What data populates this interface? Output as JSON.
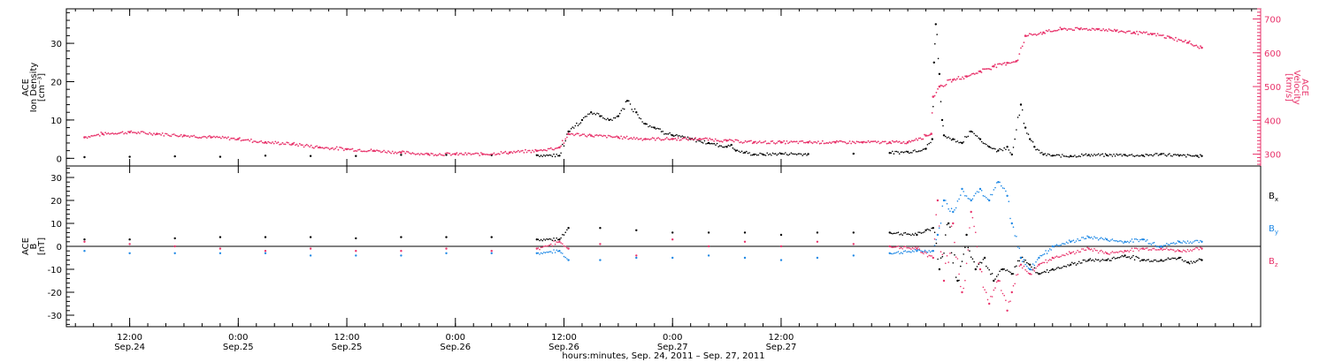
{
  "colors": {
    "black": "#000000",
    "pink": "#e8336b",
    "blue": "#1e88e5"
  },
  "chart_data": [
    {
      "type": "scatter",
      "panel": "top",
      "left_axis": {
        "label_lines": [
          "ACE",
          "Ion Density",
          "[cm⁻³]"
        ],
        "ylim": [
          -2,
          39
        ],
        "ticks": [
          0,
          10,
          20,
          30
        ]
      },
      "right_axis": {
        "label_lines": [
          "ACE",
          "Velocity",
          "[km/s]"
        ],
        "ylim": [
          265,
          730
        ],
        "ticks": [
          300,
          400,
          500,
          600,
          700
        ]
      },
      "series": [
        {
          "color_key": "black",
          "axis": "left",
          "points": [
            [
              -5,
              0.3
            ],
            [
              0,
              0.4
            ],
            [
              5,
              0.5
            ],
            [
              10,
              0.4
            ],
            [
              15,
              0.7
            ],
            [
              20,
              0.6
            ],
            [
              25,
              0.6
            ],
            [
              30,
              0.9
            ],
            [
              35,
              0.9
            ],
            [
              40,
              0.8
            ],
            [
              45,
              0.8
            ],
            [
              47.5,
              0.7
            ],
            [
              48.5,
              7
            ],
            [
              50,
              10
            ],
            [
              51,
              12
            ],
            [
              52,
              11
            ],
            [
              53,
              10
            ],
            [
              54,
              11
            ],
            [
              55,
              15
            ],
            [
              56,
              12
            ],
            [
              57,
              9
            ],
            [
              58,
              8
            ],
            [
              60,
              6
            ],
            [
              62,
              5
            ],
            [
              64,
              4
            ],
            [
              66,
              3
            ],
            [
              66.5,
              3.5
            ],
            [
              67,
              2
            ],
            [
              68,
              1.5
            ],
            [
              69,
              1
            ],
            [
              70,
              1
            ],
            [
              72,
              1.2
            ],
            [
              75,
              1.1
            ],
            [
              80,
              1.2
            ],
            [
              84,
              1.4
            ],
            [
              86,
              1.7
            ],
            [
              88,
              2.5
            ],
            [
              88.7,
              5
            ],
            [
              88.9,
              25
            ],
            [
              89.1,
              35
            ],
            [
              89.5,
              22
            ],
            [
              89.8,
              10
            ],
            [
              90,
              6
            ],
            [
              91,
              5
            ],
            [
              92,
              4
            ],
            [
              93,
              7
            ],
            [
              94,
              5
            ],
            [
              95,
              3
            ],
            [
              96,
              2
            ],
            [
              97,
              3
            ],
            [
              97.5,
              1
            ],
            [
              98.5,
              14
            ],
            [
              99,
              8
            ],
            [
              99.5,
              5
            ],
            [
              100,
              3
            ],
            [
              101,
              1
            ],
            [
              102,
              0.7
            ],
            [
              104,
              0.6
            ],
            [
              106,
              0.9
            ],
            [
              108,
              0.8
            ],
            [
              110,
              0.9
            ],
            [
              112,
              0.7
            ],
            [
              114,
              1.1
            ],
            [
              116,
              0.7
            ],
            [
              118,
              0.6
            ],
            [
              118.5,
              0.6
            ]
          ]
        },
        {
          "color_key": "pink",
          "axis": "right",
          "points": [
            [
              -5,
              350
            ],
            [
              -3,
              360
            ],
            [
              0,
              365
            ],
            [
              3,
              360
            ],
            [
              6,
              355
            ],
            [
              9,
              350
            ],
            [
              12,
              345
            ],
            [
              15,
              335
            ],
            [
              18,
              330
            ],
            [
              21,
              320
            ],
            [
              24,
              315
            ],
            [
              27,
              310
            ],
            [
              30,
              305
            ],
            [
              33,
              300
            ],
            [
              36,
              300
            ],
            [
              39,
              300
            ],
            [
              42,
              305
            ],
            [
              45,
              310
            ],
            [
              47.5,
              320
            ],
            [
              48.5,
              360
            ],
            [
              51,
              355
            ],
            [
              54,
              350
            ],
            [
              57,
              345
            ],
            [
              60,
              345
            ],
            [
              63,
              345
            ],
            [
              66,
              340
            ],
            [
              69,
              335
            ],
            [
              72,
              335
            ],
            [
              75,
              335
            ],
            [
              78,
              335
            ],
            [
              81,
              335
            ],
            [
              84,
              335
            ],
            [
              86,
              335
            ],
            [
              88,
              355
            ],
            [
              88.6,
              360
            ],
            [
              88.8,
              470
            ],
            [
              89.5,
              500
            ],
            [
              91,
              520
            ],
            [
              92.5,
              530
            ],
            [
              94,
              545
            ],
            [
              95.5,
              560
            ],
            [
              97,
              570
            ],
            [
              98,
              575
            ],
            [
              99,
              650
            ],
            [
              101,
              660
            ],
            [
              103,
              670
            ],
            [
              105,
              670
            ],
            [
              107,
              670
            ],
            [
              109,
              665
            ],
            [
              111,
              660
            ],
            [
              113,
              655
            ],
            [
              115,
              645
            ],
            [
              117,
              630
            ],
            [
              118.5,
              615
            ]
          ]
        }
      ]
    },
    {
      "type": "scatter",
      "panel": "bottom",
      "left_axis": {
        "label_lines": [
          "ACE",
          "B",
          "[nT]"
        ],
        "ylim": [
          -35,
          35
        ],
        "ticks": [
          -30,
          -20,
          -10,
          0,
          10,
          20,
          30
        ]
      },
      "legend": {
        "placement": "right",
        "entries": [
          "Bx",
          "By",
          "Bz"
        ]
      },
      "series": [
        {
          "name": "Bx",
          "color_key": "black",
          "points": [
            [
              -5,
              3
            ],
            [
              0,
              3
            ],
            [
              5,
              3.5
            ],
            [
              10,
              4
            ],
            [
              15,
              4
            ],
            [
              20,
              4
            ],
            [
              25,
              3.5
            ],
            [
              30,
              4
            ],
            [
              35,
              4
            ],
            [
              40,
              4
            ],
            [
              45,
              3
            ],
            [
              47.5,
              3
            ],
            [
              48.5,
              8
            ],
            [
              52,
              8
            ],
            [
              56,
              7
            ],
            [
              60,
              6
            ],
            [
              64,
              6
            ],
            [
              68,
              6
            ],
            [
              72,
              5
            ],
            [
              76,
              6
            ],
            [
              80,
              6
            ],
            [
              84,
              6
            ],
            [
              87,
              5
            ],
            [
              88,
              7
            ],
            [
              88.8,
              8
            ],
            [
              89.5,
              -10
            ],
            [
              90.5,
              10
            ],
            [
              91.5,
              -15
            ],
            [
              92.5,
              5
            ],
            [
              93.5,
              -10
            ],
            [
              94.5,
              -5
            ],
            [
              95.5,
              -15
            ],
            [
              96.5,
              -10
            ],
            [
              97.5,
              -12
            ],
            [
              98.5,
              -5
            ],
            [
              99.5,
              -8
            ],
            [
              100.5,
              -12
            ],
            [
              102,
              -10
            ],
            [
              104,
              -8
            ],
            [
              106,
              -6
            ],
            [
              108,
              -6
            ],
            [
              110,
              -4
            ],
            [
              112,
              -6
            ],
            [
              114,
              -6
            ],
            [
              116,
              -5
            ],
            [
              117,
              -7
            ],
            [
              118.5,
              -6
            ]
          ]
        },
        {
          "name": "By",
          "color_key": "blue",
          "points": [
            [
              -5,
              -2
            ],
            [
              0,
              -3
            ],
            [
              5,
              -3
            ],
            [
              10,
              -3
            ],
            [
              15,
              -3
            ],
            [
              20,
              -4
            ],
            [
              25,
              -4
            ],
            [
              30,
              -4
            ],
            [
              35,
              -3
            ],
            [
              40,
              -3
            ],
            [
              45,
              -3
            ],
            [
              47.5,
              -2
            ],
            [
              48.5,
              -6
            ],
            [
              52,
              -6
            ],
            [
              56,
              -5
            ],
            [
              60,
              -5
            ],
            [
              64,
              -4
            ],
            [
              68,
              -5
            ],
            [
              72,
              -6
            ],
            [
              76,
              -5
            ],
            [
              80,
              -4
            ],
            [
              84,
              -3
            ],
            [
              87,
              -2
            ],
            [
              88.8,
              -2
            ],
            [
              89.3,
              5
            ],
            [
              90,
              20
            ],
            [
              91,
              15
            ],
            [
              92,
              25
            ],
            [
              93,
              20
            ],
            [
              94,
              25
            ],
            [
              95,
              20
            ],
            [
              96,
              28
            ],
            [
              97,
              22
            ],
            [
              97.5,
              10
            ],
            [
              98.5,
              -5
            ],
            [
              99.5,
              -10
            ],
            [
              100.5,
              -5
            ],
            [
              102,
              0
            ],
            [
              104,
              2
            ],
            [
              106,
              4
            ],
            [
              108,
              3
            ],
            [
              110,
              2
            ],
            [
              112,
              3
            ],
            [
              114,
              0
            ],
            [
              116,
              2
            ],
            [
              118.5,
              2
            ]
          ]
        },
        {
          "name": "Bz",
          "color_key": "pink",
          "points": [
            [
              -5,
              2
            ],
            [
              0,
              1
            ],
            [
              5,
              0
            ],
            [
              10,
              -1
            ],
            [
              15,
              -2
            ],
            [
              20,
              -1
            ],
            [
              25,
              -2
            ],
            [
              30,
              -2
            ],
            [
              35,
              -1
            ],
            [
              40,
              -2
            ],
            [
              45,
              -1
            ],
            [
              47.5,
              2
            ],
            [
              48.5,
              -1
            ],
            [
              52,
              1
            ],
            [
              56,
              -4
            ],
            [
              60,
              3
            ],
            [
              64,
              0
            ],
            [
              68,
              2
            ],
            [
              72,
              0
            ],
            [
              76,
              2
            ],
            [
              80,
              1
            ],
            [
              84,
              0
            ],
            [
              87,
              -1
            ],
            [
              88.8,
              -5
            ],
            [
              89.3,
              20
            ],
            [
              90,
              -15
            ],
            [
              91,
              10
            ],
            [
              92,
              -20
            ],
            [
              93,
              15
            ],
            [
              94,
              -10
            ],
            [
              95,
              -25
            ],
            [
              96,
              -15
            ],
            [
              97,
              -28
            ],
            [
              97.5,
              -20
            ],
            [
              98.5,
              -8
            ],
            [
              99.5,
              -12
            ],
            [
              100.5,
              -8
            ],
            [
              102,
              -5
            ],
            [
              104,
              -3
            ],
            [
              106,
              -1
            ],
            [
              108,
              -3
            ],
            [
              110,
              -2
            ],
            [
              112,
              -1
            ],
            [
              114,
              -1
            ],
            [
              116,
              -2
            ],
            [
              118.5,
              -1
            ]
          ]
        }
      ]
    }
  ],
  "x_axis": {
    "range_hours": [
      -7,
      125
    ],
    "major_ticks": [
      {
        "hour": 0,
        "time": "12:00",
        "date": "Sep.24"
      },
      {
        "hour": 12,
        "time": "0:00",
        "date": "Sep.25"
      },
      {
        "hour": 24,
        "time": "12:00",
        "date": "Sep.25"
      },
      {
        "hour": 36,
        "time": "0:00",
        "date": "Sep.26"
      },
      {
        "hour": 48,
        "time": "12:00",
        "date": "Sep.26"
      },
      {
        "hour": 60,
        "time": "0:00",
        "date": "Sep.27"
      },
      {
        "hour": 72,
        "time": "12:00",
        "date": "Sep.27"
      }
    ],
    "title": "hours:minutes, Sep. 24, 2011 – Sep. 27, 2011"
  }
}
